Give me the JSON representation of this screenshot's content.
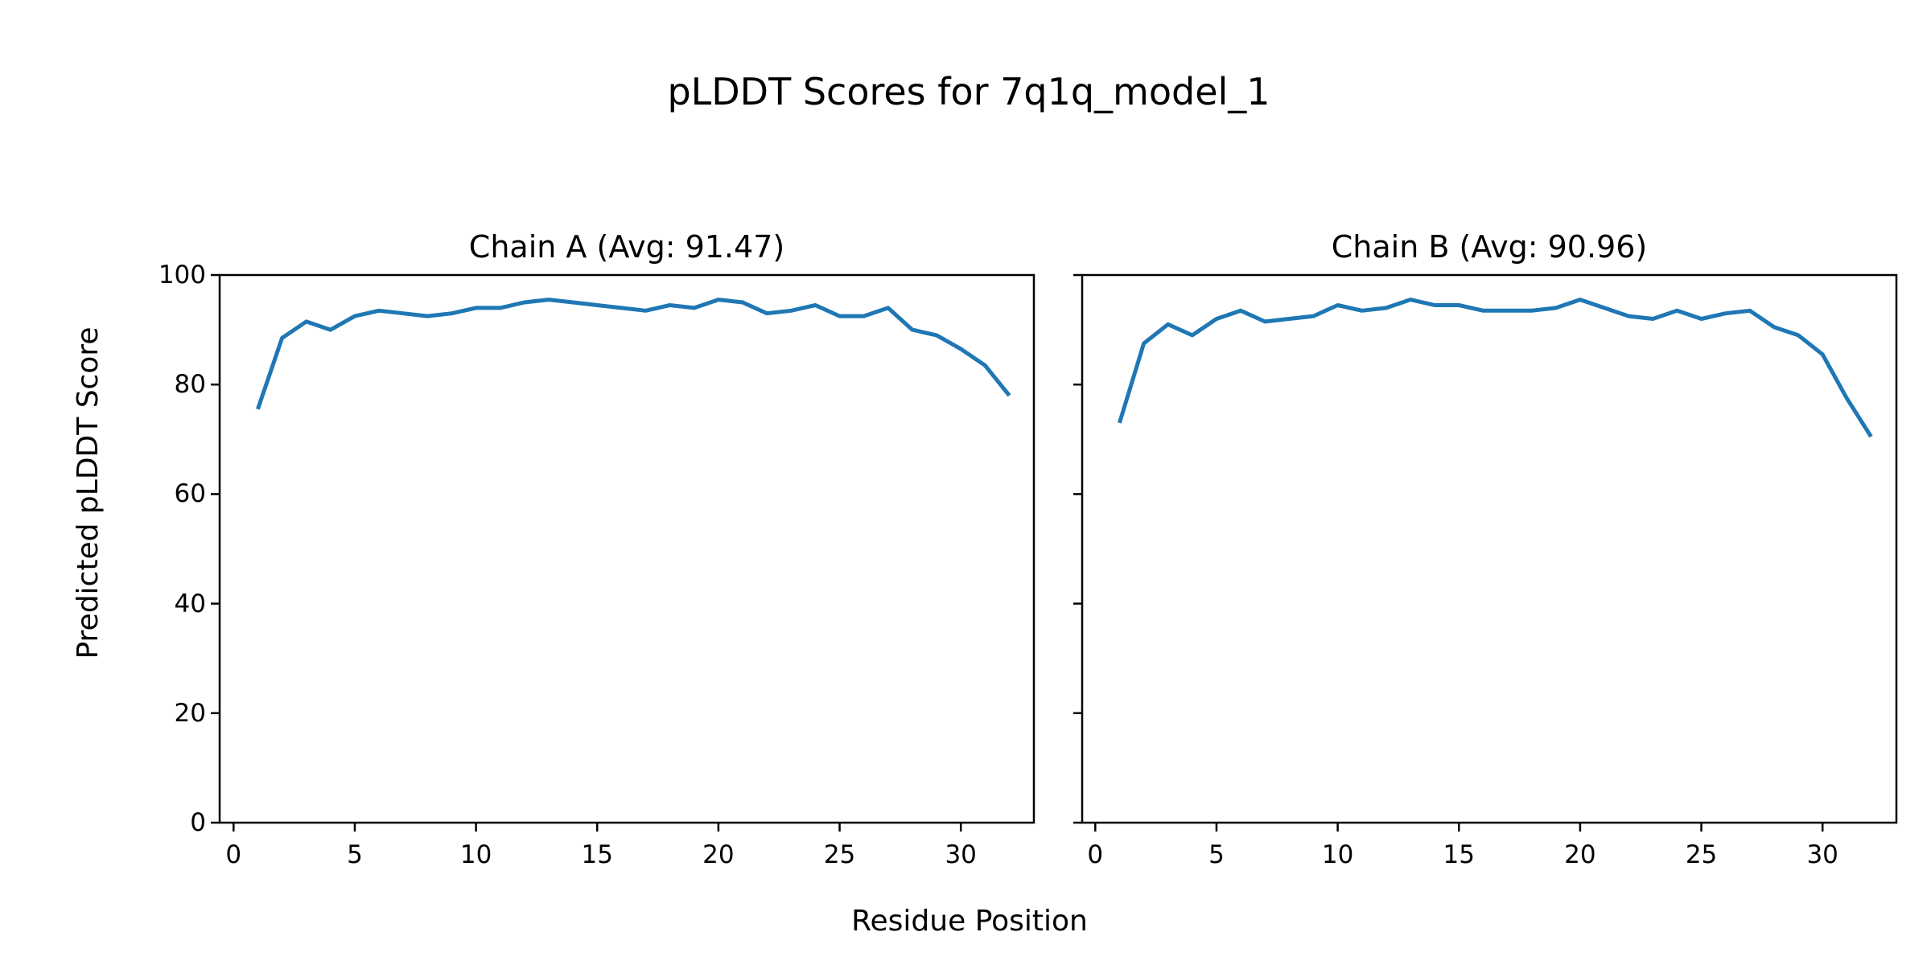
{
  "figure": {
    "title": "pLDDT Scores for 7q1q_model_1",
    "xlabel": "Residue Position",
    "ylabel": "Predicted pLDDT Score",
    "background_color": "#ffffff",
    "text_color": "#000000",
    "line_color": "#1f77b4"
  },
  "chart_data": [
    {
      "type": "line",
      "title": "Chain A (Avg: 91.47)",
      "chain": "A",
      "average_plddt": 91.47,
      "x_start": 1,
      "xlabel": "Residue Position",
      "ylabel": "Predicted pLDDT Score",
      "xticks": [
        0,
        5,
        10,
        15,
        20,
        25,
        30
      ],
      "yticks": [
        0,
        20,
        40,
        60,
        80,
        100
      ],
      "ylim": [
        0,
        100
      ],
      "xlim": [
        -1.1,
        33.2
      ],
      "grid": false,
      "legend": "none",
      "series": [
        {
          "name": "pLDDT",
          "color": "#1f77b4",
          "values": [
            75.5,
            88.5,
            91.5,
            90.0,
            92.5,
            93.5,
            93.0,
            92.5,
            93.0,
            94.0,
            94.0,
            95.0,
            95.5,
            95.0,
            94.5,
            94.0,
            93.5,
            94.5,
            94.0,
            95.5,
            95.0,
            93.0,
            93.5,
            94.5,
            92.5,
            92.5,
            94.0,
            90.0,
            89.0,
            86.5,
            83.5,
            78.0
          ]
        }
      ]
    },
    {
      "type": "line",
      "title": "Chain B (Avg: 90.96)",
      "chain": "B",
      "average_plddt": 90.96,
      "x_start": 1,
      "xlabel": "Residue Position",
      "ylabel": "Predicted pLDDT Score",
      "xticks": [
        0,
        5,
        10,
        15,
        20,
        25,
        30
      ],
      "yticks": [
        0,
        20,
        40,
        60,
        80,
        100
      ],
      "ylim": [
        0,
        100
      ],
      "xlim": [
        -1.1,
        33.2
      ],
      "grid": false,
      "legend": "none",
      "series": [
        {
          "name": "pLDDT",
          "color": "#1f77b4",
          "values": [
            73.0,
            87.5,
            91.0,
            89.0,
            92.0,
            93.5,
            91.5,
            92.0,
            92.5,
            94.5,
            93.5,
            94.0,
            95.5,
            94.5,
            94.5,
            93.5,
            93.5,
            93.5,
            94.0,
            95.5,
            94.0,
            92.5,
            92.0,
            93.5,
            92.0,
            93.0,
            93.5,
            90.5,
            89.0,
            85.5,
            77.5,
            70.5
          ]
        }
      ]
    }
  ]
}
